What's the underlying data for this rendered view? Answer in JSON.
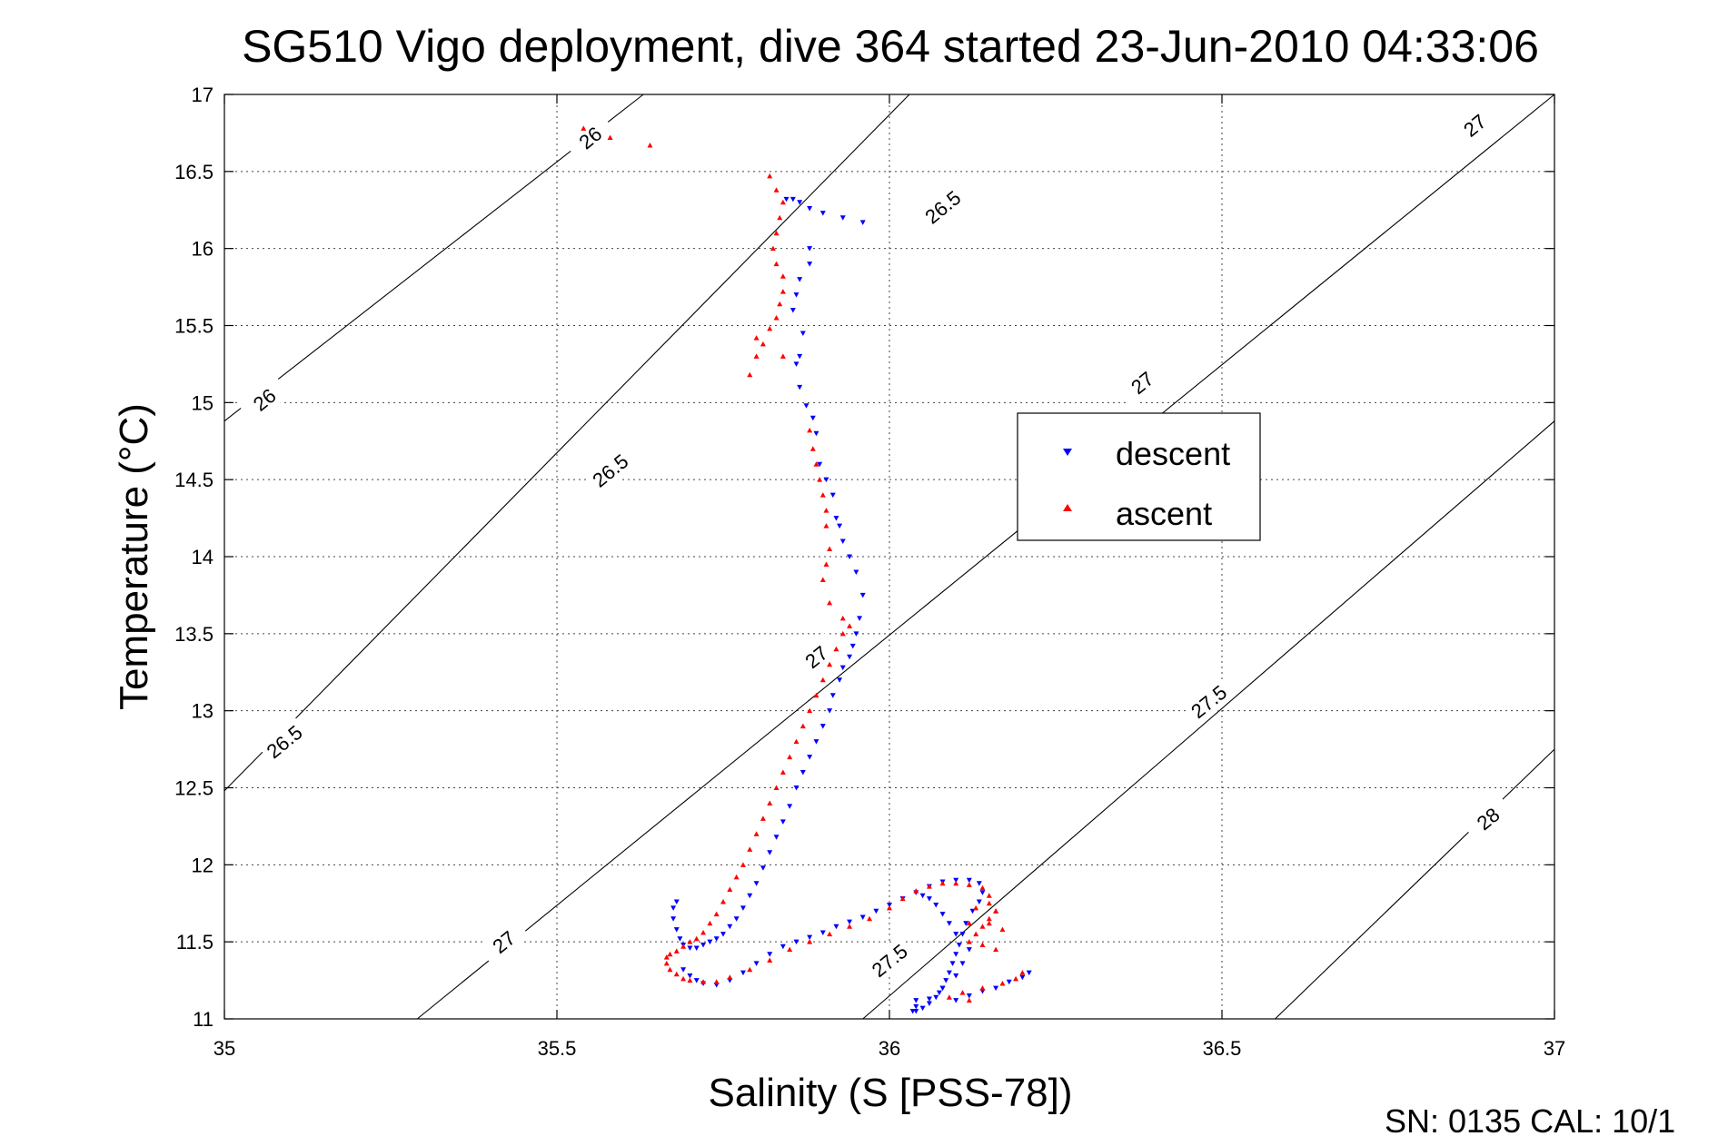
{
  "chart_data": {
    "type": "scatter",
    "title": "SG510 Vigo deployment, dive 364 started 23-Jun-2010 04:33:06",
    "xlabel": "Salinity (S [PSS-78])",
    "ylabel": "Temperature (°C)",
    "xlim": [
      35,
      37
    ],
    "ylim": [
      11,
      17
    ],
    "x_ticks": [
      "35",
      "35.5",
      "36",
      "36.5",
      "37"
    ],
    "y_ticks": [
      "11",
      "11.5",
      "12",
      "12.5",
      "13",
      "13.5",
      "14",
      "14.5",
      "15",
      "15.5",
      "16",
      "16.5",
      "17"
    ],
    "grid": true,
    "legend_position": "center-right",
    "footer": "SN: 0135  CAL: 10/1",
    "contours": [
      {
        "label": "26",
        "points": [
          [
            35.0,
            14.88
          ],
          [
            35.63,
            17.0
          ]
        ],
        "label_positions": [
          [
            35.06,
            15.02
          ],
          [
            35.55,
            16.72
          ]
        ]
      },
      {
        "label": "26.5",
        "points": [
          [
            35.0,
            12.48
          ],
          [
            36.03,
            17.0
          ]
        ],
        "label_positions": [
          [
            35.09,
            12.8
          ],
          [
            35.58,
            14.56
          ],
          [
            36.08,
            16.27
          ]
        ]
      },
      {
        "label": "27",
        "points": [
          [
            35.29,
            11.0
          ],
          [
            37.0,
            17.0
          ]
        ],
        "label_positions": [
          [
            35.42,
            11.5
          ],
          [
            35.89,
            13.35
          ],
          [
            36.38,
            15.13
          ],
          [
            36.88,
            16.8
          ]
        ]
      },
      {
        "label": "27.5",
        "points": [
          [
            35.96,
            11.0
          ],
          [
            37.0,
            14.88
          ]
        ],
        "label_positions": [
          [
            36.0,
            11.38
          ],
          [
            36.48,
            13.06
          ]
        ]
      },
      {
        "label": "28",
        "points": [
          [
            36.58,
            11.0
          ],
          [
            37.0,
            12.75
          ]
        ],
        "label_positions": [
          [
            36.9,
            12.3
          ]
        ]
      }
    ],
    "series": [
      {
        "name": "descent",
        "color": "#0000ff",
        "marker": "triangle-down",
        "x": [
          35.845,
          35.855,
          35.865,
          35.88,
          35.9,
          35.93,
          35.96,
          35.855,
          35.86,
          35.865,
          35.88,
          35.88,
          35.87,
          35.865,
          35.86,
          35.865,
          35.875,
          35.885,
          35.89,
          35.895,
          35.905,
          35.915,
          35.92,
          35.925,
          35.93,
          35.94,
          35.95,
          35.96,
          35.955,
          35.95,
          35.945,
          35.94,
          35.93,
          35.925,
          35.915,
          35.91,
          35.9,
          35.89,
          35.88,
          35.87,
          35.86,
          35.85,
          35.84,
          35.83,
          35.82,
          35.81,
          35.8,
          35.79,
          35.78,
          35.77,
          35.76,
          35.75,
          35.74,
          35.73,
          35.72,
          35.71,
          35.7,
          35.69,
          35.685,
          35.68,
          35.675,
          35.675,
          35.68,
          35.69,
          35.7,
          35.71,
          35.72,
          35.74,
          35.76,
          35.78,
          35.8,
          35.82,
          35.84,
          35.86,
          35.88,
          35.9,
          35.92,
          35.94,
          35.96,
          35.98,
          36.0,
          36.02,
          36.04,
          36.06,
          36.08,
          36.1,
          36.12,
          36.135,
          36.14,
          36.135,
          36.125,
          36.115,
          36.11,
          36.105,
          36.1,
          36.095,
          36.09,
          36.085,
          36.08,
          36.075,
          36.07,
          36.06,
          36.05,
          36.04,
          36.035,
          36.04,
          36.06,
          36.08,
          36.1,
          36.11,
          36.12,
          36.1,
          36.09,
          36.08,
          36.07,
          36.06,
          36.05,
          36.04,
          36.1,
          36.12,
          36.14,
          36.16,
          36.18,
          36.2,
          36.21
        ],
        "y": [
          16.32,
          16.32,
          16.3,
          16.26,
          16.23,
          16.2,
          16.17,
          15.6,
          15.7,
          15.8,
          15.9,
          16.0,
          15.45,
          15.3,
          15.25,
          15.1,
          14.98,
          14.9,
          14.8,
          14.6,
          14.5,
          14.4,
          14.25,
          14.2,
          14.1,
          14.0,
          13.9,
          13.75,
          13.6,
          13.5,
          13.42,
          13.35,
          13.28,
          13.2,
          13.1,
          13.0,
          12.9,
          12.8,
          12.7,
          12.6,
          12.5,
          12.38,
          12.28,
          12.18,
          12.08,
          11.98,
          11.88,
          11.8,
          11.72,
          11.65,
          11.6,
          11.55,
          11.52,
          11.5,
          11.48,
          11.46,
          11.46,
          11.48,
          11.52,
          11.58,
          11.65,
          11.72,
          11.76,
          11.32,
          11.28,
          11.25,
          11.23,
          11.22,
          11.25,
          11.3,
          11.36,
          11.42,
          11.47,
          11.5,
          11.53,
          11.56,
          11.6,
          11.63,
          11.66,
          11.7,
          11.74,
          11.78,
          11.82,
          11.86,
          11.89,
          11.9,
          11.9,
          11.88,
          11.82,
          11.76,
          11.7,
          11.62,
          11.55,
          11.48,
          11.42,
          11.36,
          11.3,
          11.25,
          11.2,
          11.17,
          11.14,
          11.1,
          11.07,
          11.05,
          11.05,
          11.08,
          11.13,
          11.2,
          11.28,
          11.36,
          11.45,
          11.55,
          11.62,
          11.68,
          11.74,
          11.78,
          11.8,
          11.12,
          11.12,
          11.15,
          11.18,
          11.2,
          11.24,
          11.27,
          11.3
        ]
      },
      {
        "name": "ascent",
        "color": "#ff0000",
        "marker": "triangle-up",
        "x": [
          35.54,
          35.58,
          35.64,
          35.82,
          35.83,
          35.84,
          35.835,
          35.83,
          35.825,
          35.83,
          35.84,
          35.84,
          35.835,
          35.83,
          35.82,
          35.81,
          35.8,
          35.79,
          35.8,
          35.84,
          35.88,
          35.885,
          35.89,
          35.895,
          35.9,
          35.905,
          35.905,
          35.91,
          35.905,
          35.9,
          35.91,
          35.93,
          35.94,
          35.93,
          35.92,
          35.91,
          35.9,
          35.89,
          35.88,
          35.87,
          35.86,
          35.85,
          35.84,
          35.83,
          35.82,
          35.81,
          35.8,
          35.79,
          35.78,
          35.77,
          35.76,
          35.75,
          35.74,
          35.73,
          35.72,
          35.71,
          35.7,
          35.69,
          35.68,
          35.67,
          35.665,
          35.665,
          35.67,
          35.68,
          35.69,
          35.7,
          35.72,
          35.74,
          35.76,
          35.79,
          35.82,
          35.85,
          35.88,
          35.91,
          35.94,
          35.97,
          36.0,
          36.02,
          36.04,
          36.06,
          36.08,
          36.1,
          36.12,
          36.14,
          36.15,
          36.16,
          36.15,
          36.14,
          36.13,
          36.12,
          36.15,
          36.17,
          36.16,
          36.13,
          36.12,
          36.15,
          36.16,
          36.14,
          36.12,
          36.09,
          36.11,
          36.14,
          36.17,
          36.19,
          36.2
        ],
        "y": [
          16.78,
          16.72,
          16.67,
          16.47,
          16.38,
          16.3,
          16.2,
          16.1,
          16.0,
          15.9,
          15.82,
          15.72,
          15.64,
          15.55,
          15.48,
          15.38,
          15.3,
          15.18,
          15.42,
          15.3,
          14.82,
          14.7,
          14.6,
          14.5,
          14.4,
          14.3,
          14.2,
          14.05,
          13.95,
          13.85,
          13.7,
          13.6,
          13.55,
          13.5,
          13.4,
          13.3,
          13.2,
          13.1,
          13.0,
          12.9,
          12.8,
          12.7,
          12.6,
          12.5,
          12.4,
          12.3,
          12.2,
          12.1,
          12.0,
          11.92,
          11.84,
          11.76,
          11.68,
          11.62,
          11.56,
          11.52,
          11.5,
          11.47,
          11.44,
          11.42,
          11.4,
          11.36,
          11.32,
          11.29,
          11.26,
          11.25,
          11.24,
          11.24,
          11.27,
          11.32,
          11.38,
          11.45,
          11.5,
          11.55,
          11.6,
          11.65,
          11.72,
          11.78,
          11.83,
          11.86,
          11.88,
          11.88,
          11.87,
          11.85,
          11.8,
          11.7,
          11.65,
          11.6,
          11.55,
          11.5,
          11.62,
          11.58,
          11.7,
          11.72,
          11.62,
          11.75,
          11.45,
          11.48,
          11.12,
          11.14,
          11.17,
          11.2,
          11.23,
          11.26,
          11.3
        ]
      }
    ]
  }
}
